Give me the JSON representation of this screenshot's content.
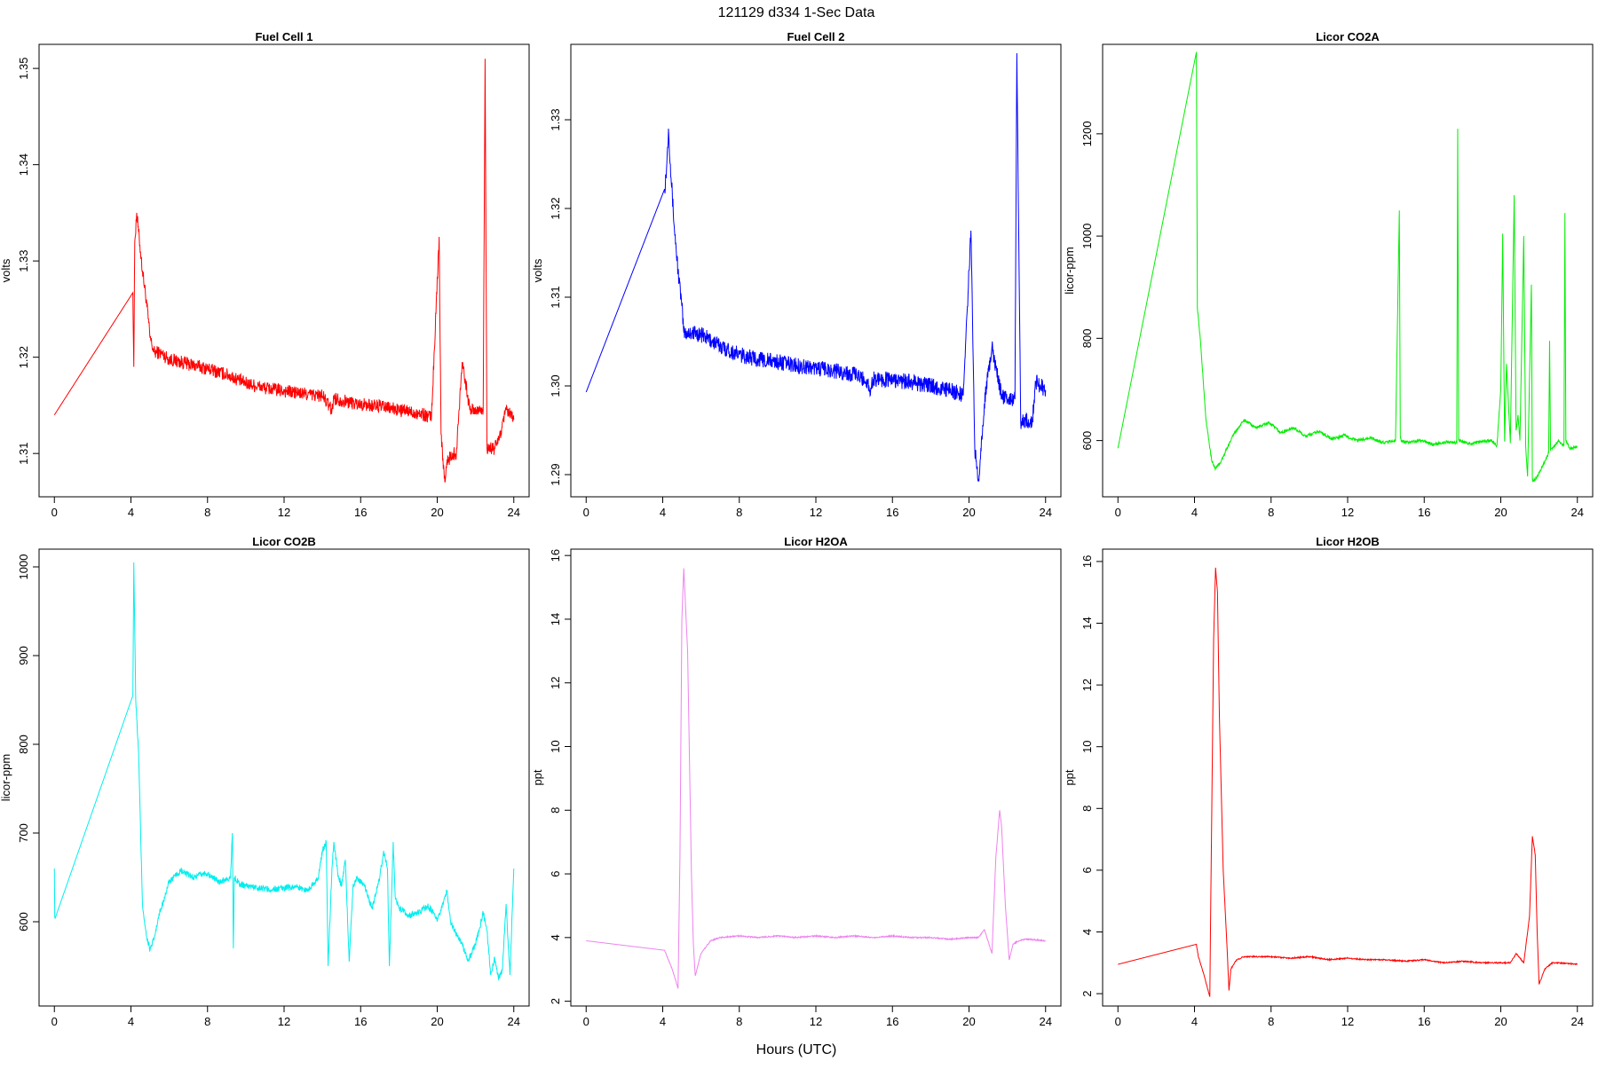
{
  "figure": {
    "title": "121129   d334   1-Sec Data",
    "xlabel": "Hours (UTC)",
    "colors": {
      "red": "#ff0000",
      "blue": "#0000ff",
      "green": "#00ee00",
      "cyan": "#00eeee",
      "violet": "#ee82ee"
    }
  },
  "chart_data": [
    {
      "type": "line",
      "title": "Fuel Cell 1",
      "ylabel": "volts",
      "color": "#ff0000",
      "xlim": [
        -0.8,
        24.8
      ],
      "ylim": [
        1.3055,
        1.3525
      ],
      "xticks": [
        0,
        4,
        8,
        12,
        16,
        20,
        24
      ],
      "yticks": [
        1.31,
        1.32,
        1.33,
        1.34,
        1.35
      ],
      "x": [
        0,
        4.1,
        4.15,
        4.2,
        4.3,
        4.4,
        4.6,
        4.8,
        5.0,
        5.2,
        5.5,
        6,
        7,
        8,
        9,
        10,
        11,
        12,
        13,
        14,
        14.5,
        14.6,
        15,
        16,
        17,
        18,
        19,
        19.7,
        20.1,
        20.2,
        20.4,
        20.5,
        20.8,
        21.0,
        21.3,
        21.4,
        21.7,
        21.8,
        22.4,
        22.5,
        22.6,
        23.0,
        23.3,
        23.6,
        24
      ],
      "y": [
        1.314,
        1.3267,
        1.319,
        1.332,
        1.335,
        1.333,
        1.329,
        1.326,
        1.322,
        1.3205,
        1.3205,
        1.3198,
        1.3193,
        1.3188,
        1.3182,
        1.3173,
        1.3168,
        1.3165,
        1.3162,
        1.316,
        1.3145,
        1.3158,
        1.3155,
        1.3151,
        1.3149,
        1.3145,
        1.3142,
        1.3138,
        1.3325,
        1.312,
        1.307,
        1.309,
        1.31,
        1.31,
        1.3195,
        1.3185,
        1.3145,
        1.3145,
        1.3145,
        1.351,
        1.3105,
        1.3105,
        1.312,
        1.3145,
        1.3135
      ],
      "noise": 0.0007
    },
    {
      "type": "line",
      "title": "Fuel Cell 2",
      "ylabel": "volts",
      "color": "#0000ff",
      "xlim": [
        -0.8,
        24.8
      ],
      "ylim": [
        1.2875,
        1.3385
      ],
      "xticks": [
        0,
        4,
        8,
        12,
        16,
        20,
        24
      ],
      "yticks": [
        1.29,
        1.3,
        1.31,
        1.32,
        1.33
      ],
      "x": [
        0,
        4.1,
        4.2,
        4.3,
        4.4,
        4.6,
        4.8,
        5.0,
        5.1,
        5.5,
        6,
        7,
        8,
        9,
        10,
        11,
        12,
        13,
        14,
        14.7,
        14.8,
        15,
        16,
        17,
        18,
        19,
        19.7,
        20.1,
        20.3,
        20.5,
        20.8,
        21.2,
        21.4,
        21.7,
        22.0,
        22.4,
        22.5,
        22.7,
        23.3,
        23.5,
        24
      ],
      "y": [
        1.2993,
        1.3222,
        1.3245,
        1.329,
        1.325,
        1.318,
        1.313,
        1.309,
        1.306,
        1.306,
        1.3058,
        1.3045,
        1.3035,
        1.303,
        1.3027,
        1.3023,
        1.302,
        1.3017,
        1.3013,
        1.3005,
        1.2993,
        1.3008,
        1.3007,
        1.3004,
        1.3,
        1.2995,
        1.299,
        1.3175,
        1.293,
        1.2895,
        1.298,
        1.3045,
        1.302,
        1.299,
        1.2985,
        1.2985,
        1.3375,
        1.296,
        1.296,
        1.3005,
        1.2995
      ],
      "noise": 0.0009
    },
    {
      "type": "line",
      "title": "Licor CO2A",
      "ylabel": "licor-ppm",
      "color": "#00ee00",
      "xlim": [
        -0.8,
        24.8
      ],
      "ylim": [
        490,
        1375
      ],
      "xticks": [
        0,
        4,
        8,
        12,
        16,
        20,
        24
      ],
      "yticks": [
        600,
        800,
        1000,
        1200
      ],
      "x": [
        0,
        4.1,
        4.15,
        4.3,
        4.6,
        4.9,
        5.1,
        5.4,
        6.0,
        6.6,
        7.2,
        7.9,
        8.5,
        9.2,
        9.8,
        10.5,
        11.2,
        11.8,
        12.5,
        13.2,
        13.8,
        14.5,
        14.7,
        14.75,
        14.8,
        15.2,
        15.9,
        16.5,
        17.2,
        17.7,
        17.75,
        17.8,
        18.4,
        19.0,
        19.5,
        19.8,
        20.0,
        20.1,
        20.2,
        20.3,
        20.5,
        20.7,
        20.8,
        20.9,
        21.0,
        21.2,
        21.3,
        21.4,
        21.6,
        21.65,
        21.7,
        21.9,
        22.3,
        22.5,
        22.55,
        22.6,
        23.0,
        23.3,
        23.35,
        23.4,
        23.6,
        24
      ],
      "y": [
        585,
        1360,
        860,
        800,
        640,
        560,
        545,
        560,
        610,
        640,
        625,
        635,
        615,
        625,
        608,
        618,
        603,
        610,
        600,
        605,
        596,
        600,
        1050,
        610,
        598,
        596,
        600,
        592,
        598,
        595,
        1210,
        600,
        594,
        598,
        600,
        590,
        700,
        1005,
        598,
        750,
        595,
        1080,
        620,
        650,
        600,
        1000,
        590,
        530,
        905,
        525,
        520,
        530,
        560,
        575,
        795,
        580,
        600,
        590,
        1045,
        600,
        585,
        588
      ],
      "noise": 3
    },
    {
      "type": "line",
      "title": "Licor CO2B",
      "ylabel": "licor-ppm",
      "color": "#00eeee",
      "xlim": [
        -0.8,
        24.8
      ],
      "ylim": [
        505,
        1020
      ],
      "xticks": [
        0,
        4,
        8,
        12,
        16,
        20,
        24
      ],
      "yticks": [
        600,
        700,
        800,
        900,
        1000
      ],
      "x": [
        0,
        0.02,
        0.04,
        4.1,
        4.15,
        4.25,
        4.4,
        4.6,
        4.8,
        5.0,
        5.2,
        5.5,
        6.0,
        6.6,
        7.3,
        7.9,
        8.6,
        9.2,
        9.3,
        9.35,
        9.4,
        9.6,
        9.7,
        10.2,
        10.8,
        11.4,
        12.0,
        12.6,
        13.2,
        13.8,
        14.0,
        14.2,
        14.3,
        14.5,
        14.6,
        14.8,
        15.0,
        15.2,
        15.4,
        15.6,
        15.8,
        16.2,
        16.6,
        17.0,
        17.2,
        17.4,
        17.5,
        17.7,
        17.8,
        18.0,
        18.5,
        19.0,
        19.5,
        19.8,
        20.0,
        20.3,
        20.5,
        20.7,
        21.0,
        21.3,
        21.6,
        22.0,
        22.4,
        22.6,
        22.8,
        23.0,
        23.2,
        23.4,
        23.6,
        23.8,
        24
      ],
      "y": [
        660,
        605,
        604,
        855,
        1005,
        850,
        790,
        620,
        585,
        568,
        580,
        610,
        645,
        657,
        650,
        655,
        645,
        650,
        700,
        570,
        650,
        645,
        642,
        640,
        638,
        636,
        638,
        640,
        635,
        650,
        680,
        690,
        550,
        660,
        690,
        655,
        640,
        670,
        555,
        640,
        650,
        640,
        615,
        650,
        680,
        660,
        550,
        690,
        630,
        615,
        607,
        610,
        618,
        610,
        600,
        620,
        635,
        600,
        585,
        575,
        555,
        575,
        610,
        590,
        540,
        560,
        535,
        545,
        620,
        540,
        660
      ],
      "noise": 3.5
    },
    {
      "type": "line",
      "title": "Licor H2OA",
      "ylabel": "ppt",
      "color": "#ee82ee",
      "xlim": [
        -0.8,
        24.8
      ],
      "ylim": [
        1.85,
        16.2
      ],
      "xticks": [
        0,
        4,
        8,
        12,
        16,
        20,
        24
      ],
      "yticks": [
        2,
        4,
        6,
        8,
        10,
        12,
        14,
        16
      ],
      "x": [
        0,
        4.1,
        4.5,
        4.8,
        4.9,
        5.0,
        5.1,
        5.3,
        5.5,
        5.6,
        5.7,
        6.0,
        6.5,
        7.0,
        8,
        9,
        10,
        11,
        12,
        13,
        14,
        15,
        16,
        17,
        18,
        19,
        20,
        20.5,
        20.8,
        21.2,
        21.4,
        21.6,
        21.7,
        21.9,
        22.1,
        22.3,
        22.6,
        23,
        24
      ],
      "y": [
        3.9,
        3.6,
        3.0,
        2.4,
        6.5,
        14.0,
        15.6,
        13.0,
        6.0,
        3.8,
        2.8,
        3.5,
        3.9,
        4.0,
        4.05,
        4.0,
        4.05,
        4.0,
        4.05,
        4.0,
        4.05,
        4.0,
        4.05,
        4.0,
        4.0,
        3.95,
        4.0,
        4.0,
        4.25,
        3.5,
        6.5,
        8.0,
        7.5,
        5.0,
        3.3,
        3.8,
        3.9,
        3.95,
        3.9
      ],
      "noise": 0.02
    },
    {
      "type": "line",
      "title": "Licor H2OB",
      "ylabel": "ppt",
      "color": "#ff0000",
      "xlim": [
        -0.8,
        24.8
      ],
      "ylim": [
        1.6,
        16.4
      ],
      "xticks": [
        0,
        4,
        8,
        12,
        16,
        20,
        24
      ],
      "yticks": [
        2,
        4,
        6,
        8,
        10,
        12,
        14,
        16
      ],
      "x": [
        0,
        4.1,
        4.2,
        4.5,
        4.8,
        4.85,
        5.0,
        5.1,
        5.2,
        5.3,
        5.5,
        5.7,
        5.8,
        5.9,
        6.2,
        6.6,
        7,
        8,
        9,
        10,
        11,
        12,
        13,
        14,
        15,
        16,
        17,
        18,
        19,
        20,
        20.5,
        20.8,
        21.2,
        21.5,
        21.65,
        21.8,
        21.9,
        22.0,
        22.3,
        22.7,
        23,
        24
      ],
      "y": [
        2.95,
        3.6,
        3.2,
        2.6,
        1.9,
        5.0,
        13.5,
        15.8,
        15.0,
        11.0,
        6.0,
        3.5,
        2.1,
        2.8,
        3.1,
        3.2,
        3.2,
        3.2,
        3.15,
        3.2,
        3.1,
        3.15,
        3.1,
        3.1,
        3.05,
        3.1,
        3.0,
        3.05,
        3.0,
        3.0,
        3.0,
        3.3,
        3.0,
        4.5,
        7.1,
        6.5,
        4.0,
        2.3,
        2.8,
        3.0,
        3.0,
        2.95
      ],
      "noise": 0.02
    }
  ]
}
